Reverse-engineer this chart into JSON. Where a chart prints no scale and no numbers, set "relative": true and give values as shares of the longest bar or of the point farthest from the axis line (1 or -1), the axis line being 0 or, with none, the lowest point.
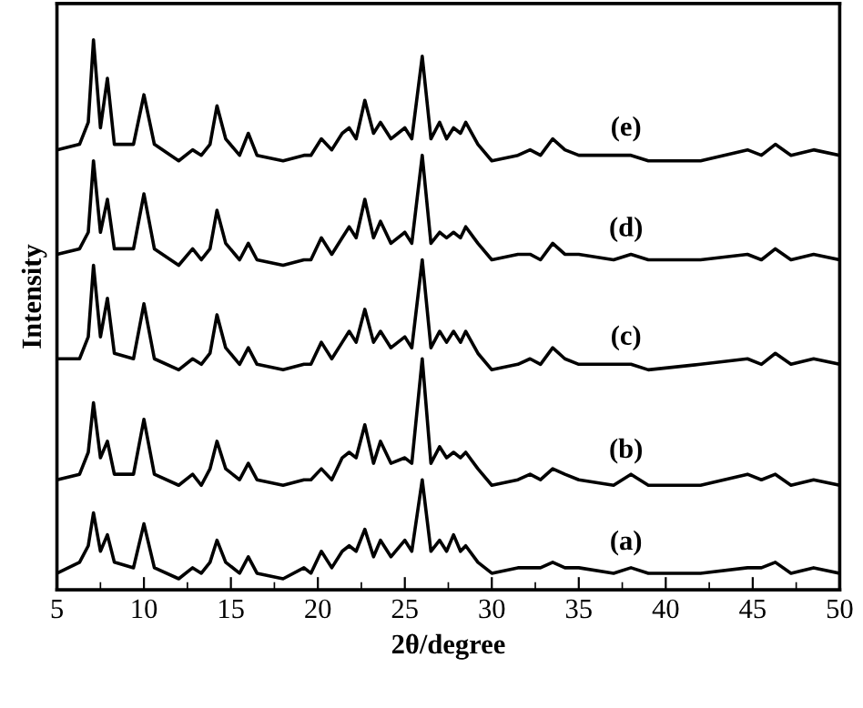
{
  "chart_data": {
    "type": "line",
    "relative": true,
    "xlabel": "2θ/degree",
    "ylabel": "Intensity",
    "xlim": [
      5,
      50
    ],
    "xticks": [
      5,
      10,
      15,
      20,
      25,
      30,
      35,
      40,
      45,
      50
    ],
    "legend": false,
    "grid": false,
    "marker": "none",
    "line_style": "solid",
    "x": [
      5,
      6.3,
      6.8,
      7.1,
      7.5,
      7.9,
      8.3,
      9.4,
      10.0,
      10.6,
      12.0,
      12.8,
      13.3,
      13.8,
      14.2,
      14.7,
      15.5,
      16.0,
      16.5,
      18,
      19.2,
      19.6,
      20.2,
      20.8,
      21.4,
      21.8,
      22.2,
      22.7,
      23.2,
      23.6,
      24.2,
      25.0,
      25.4,
      26.0,
      26.5,
      27.0,
      27.4,
      27.8,
      28.2,
      28.5,
      29.2,
      30,
      31.5,
      32.2,
      32.8,
      33.5,
      34.2,
      35,
      37,
      38,
      39,
      42,
      44.7,
      45.5,
      46.3,
      47.2,
      48.5,
      50
    ],
    "series": [
      {
        "name": "(e)",
        "color": "#000000",
        "values": [
          0.8,
          0.81,
          0.85,
          1.0,
          0.84,
          0.93,
          0.81,
          0.81,
          0.9,
          0.81,
          0.78,
          0.8,
          0.79,
          0.81,
          0.88,
          0.82,
          0.79,
          0.83,
          0.79,
          0.78,
          0.79,
          0.79,
          0.82,
          0.8,
          0.83,
          0.84,
          0.82,
          0.89,
          0.83,
          0.85,
          0.82,
          0.84,
          0.82,
          0.97,
          0.82,
          0.85,
          0.82,
          0.84,
          0.83,
          0.85,
          0.81,
          0.78,
          0.79,
          0.8,
          0.79,
          0.82,
          0.8,
          0.79,
          0.79,
          0.79,
          0.78,
          0.78,
          0.8,
          0.79,
          0.81,
          0.79,
          0.8,
          0.79
        ]
      },
      {
        "name": "(d)",
        "color": "#000000",
        "values": [
          0.61,
          0.62,
          0.65,
          0.78,
          0.65,
          0.71,
          0.62,
          0.62,
          0.72,
          0.62,
          0.59,
          0.62,
          0.6,
          0.62,
          0.69,
          0.63,
          0.6,
          0.63,
          0.6,
          0.59,
          0.6,
          0.6,
          0.64,
          0.61,
          0.64,
          0.66,
          0.64,
          0.71,
          0.64,
          0.67,
          0.63,
          0.65,
          0.63,
          0.79,
          0.63,
          0.65,
          0.64,
          0.65,
          0.64,
          0.66,
          0.63,
          0.6,
          0.61,
          0.61,
          0.6,
          0.63,
          0.61,
          0.61,
          0.6,
          0.61,
          0.6,
          0.6,
          0.61,
          0.6,
          0.62,
          0.6,
          0.61,
          0.6
        ]
      },
      {
        "name": "(c)",
        "color": "#000000",
        "values": [
          0.42,
          0.42,
          0.46,
          0.59,
          0.46,
          0.53,
          0.43,
          0.42,
          0.52,
          0.42,
          0.4,
          0.42,
          0.41,
          0.43,
          0.5,
          0.44,
          0.41,
          0.44,
          0.41,
          0.4,
          0.41,
          0.41,
          0.45,
          0.42,
          0.45,
          0.47,
          0.45,
          0.51,
          0.45,
          0.47,
          0.44,
          0.46,
          0.44,
          0.6,
          0.44,
          0.47,
          0.45,
          0.47,
          0.45,
          0.47,
          0.43,
          0.4,
          0.41,
          0.42,
          0.41,
          0.44,
          0.42,
          0.41,
          0.41,
          0.41,
          0.4,
          0.41,
          0.42,
          0.41,
          0.43,
          0.41,
          0.42,
          0.41
        ]
      },
      {
        "name": "(b)",
        "color": "#000000",
        "values": [
          0.2,
          0.21,
          0.25,
          0.34,
          0.24,
          0.27,
          0.21,
          0.21,
          0.31,
          0.21,
          0.19,
          0.21,
          0.19,
          0.22,
          0.27,
          0.22,
          0.2,
          0.23,
          0.2,
          0.19,
          0.2,
          0.2,
          0.22,
          0.2,
          0.24,
          0.25,
          0.24,
          0.3,
          0.23,
          0.27,
          0.23,
          0.24,
          0.23,
          0.42,
          0.23,
          0.26,
          0.24,
          0.25,
          0.24,
          0.25,
          0.22,
          0.19,
          0.2,
          0.21,
          0.2,
          0.22,
          0.21,
          0.2,
          0.19,
          0.21,
          0.19,
          0.19,
          0.21,
          0.2,
          0.21,
          0.19,
          0.2,
          0.19
        ]
      },
      {
        "name": "(a)",
        "color": "#000000",
        "values": [
          0.03,
          0.05,
          0.08,
          0.14,
          0.07,
          0.1,
          0.05,
          0.04,
          0.12,
          0.04,
          0.02,
          0.04,
          0.03,
          0.05,
          0.09,
          0.05,
          0.03,
          0.06,
          0.03,
          0.02,
          0.04,
          0.03,
          0.07,
          0.04,
          0.07,
          0.08,
          0.07,
          0.11,
          0.06,
          0.09,
          0.06,
          0.09,
          0.07,
          0.2,
          0.07,
          0.09,
          0.07,
          0.1,
          0.07,
          0.08,
          0.05,
          0.03,
          0.04,
          0.04,
          0.04,
          0.05,
          0.04,
          0.04,
          0.03,
          0.04,
          0.03,
          0.03,
          0.04,
          0.04,
          0.05,
          0.03,
          0.04,
          0.03
        ]
      }
    ]
  }
}
